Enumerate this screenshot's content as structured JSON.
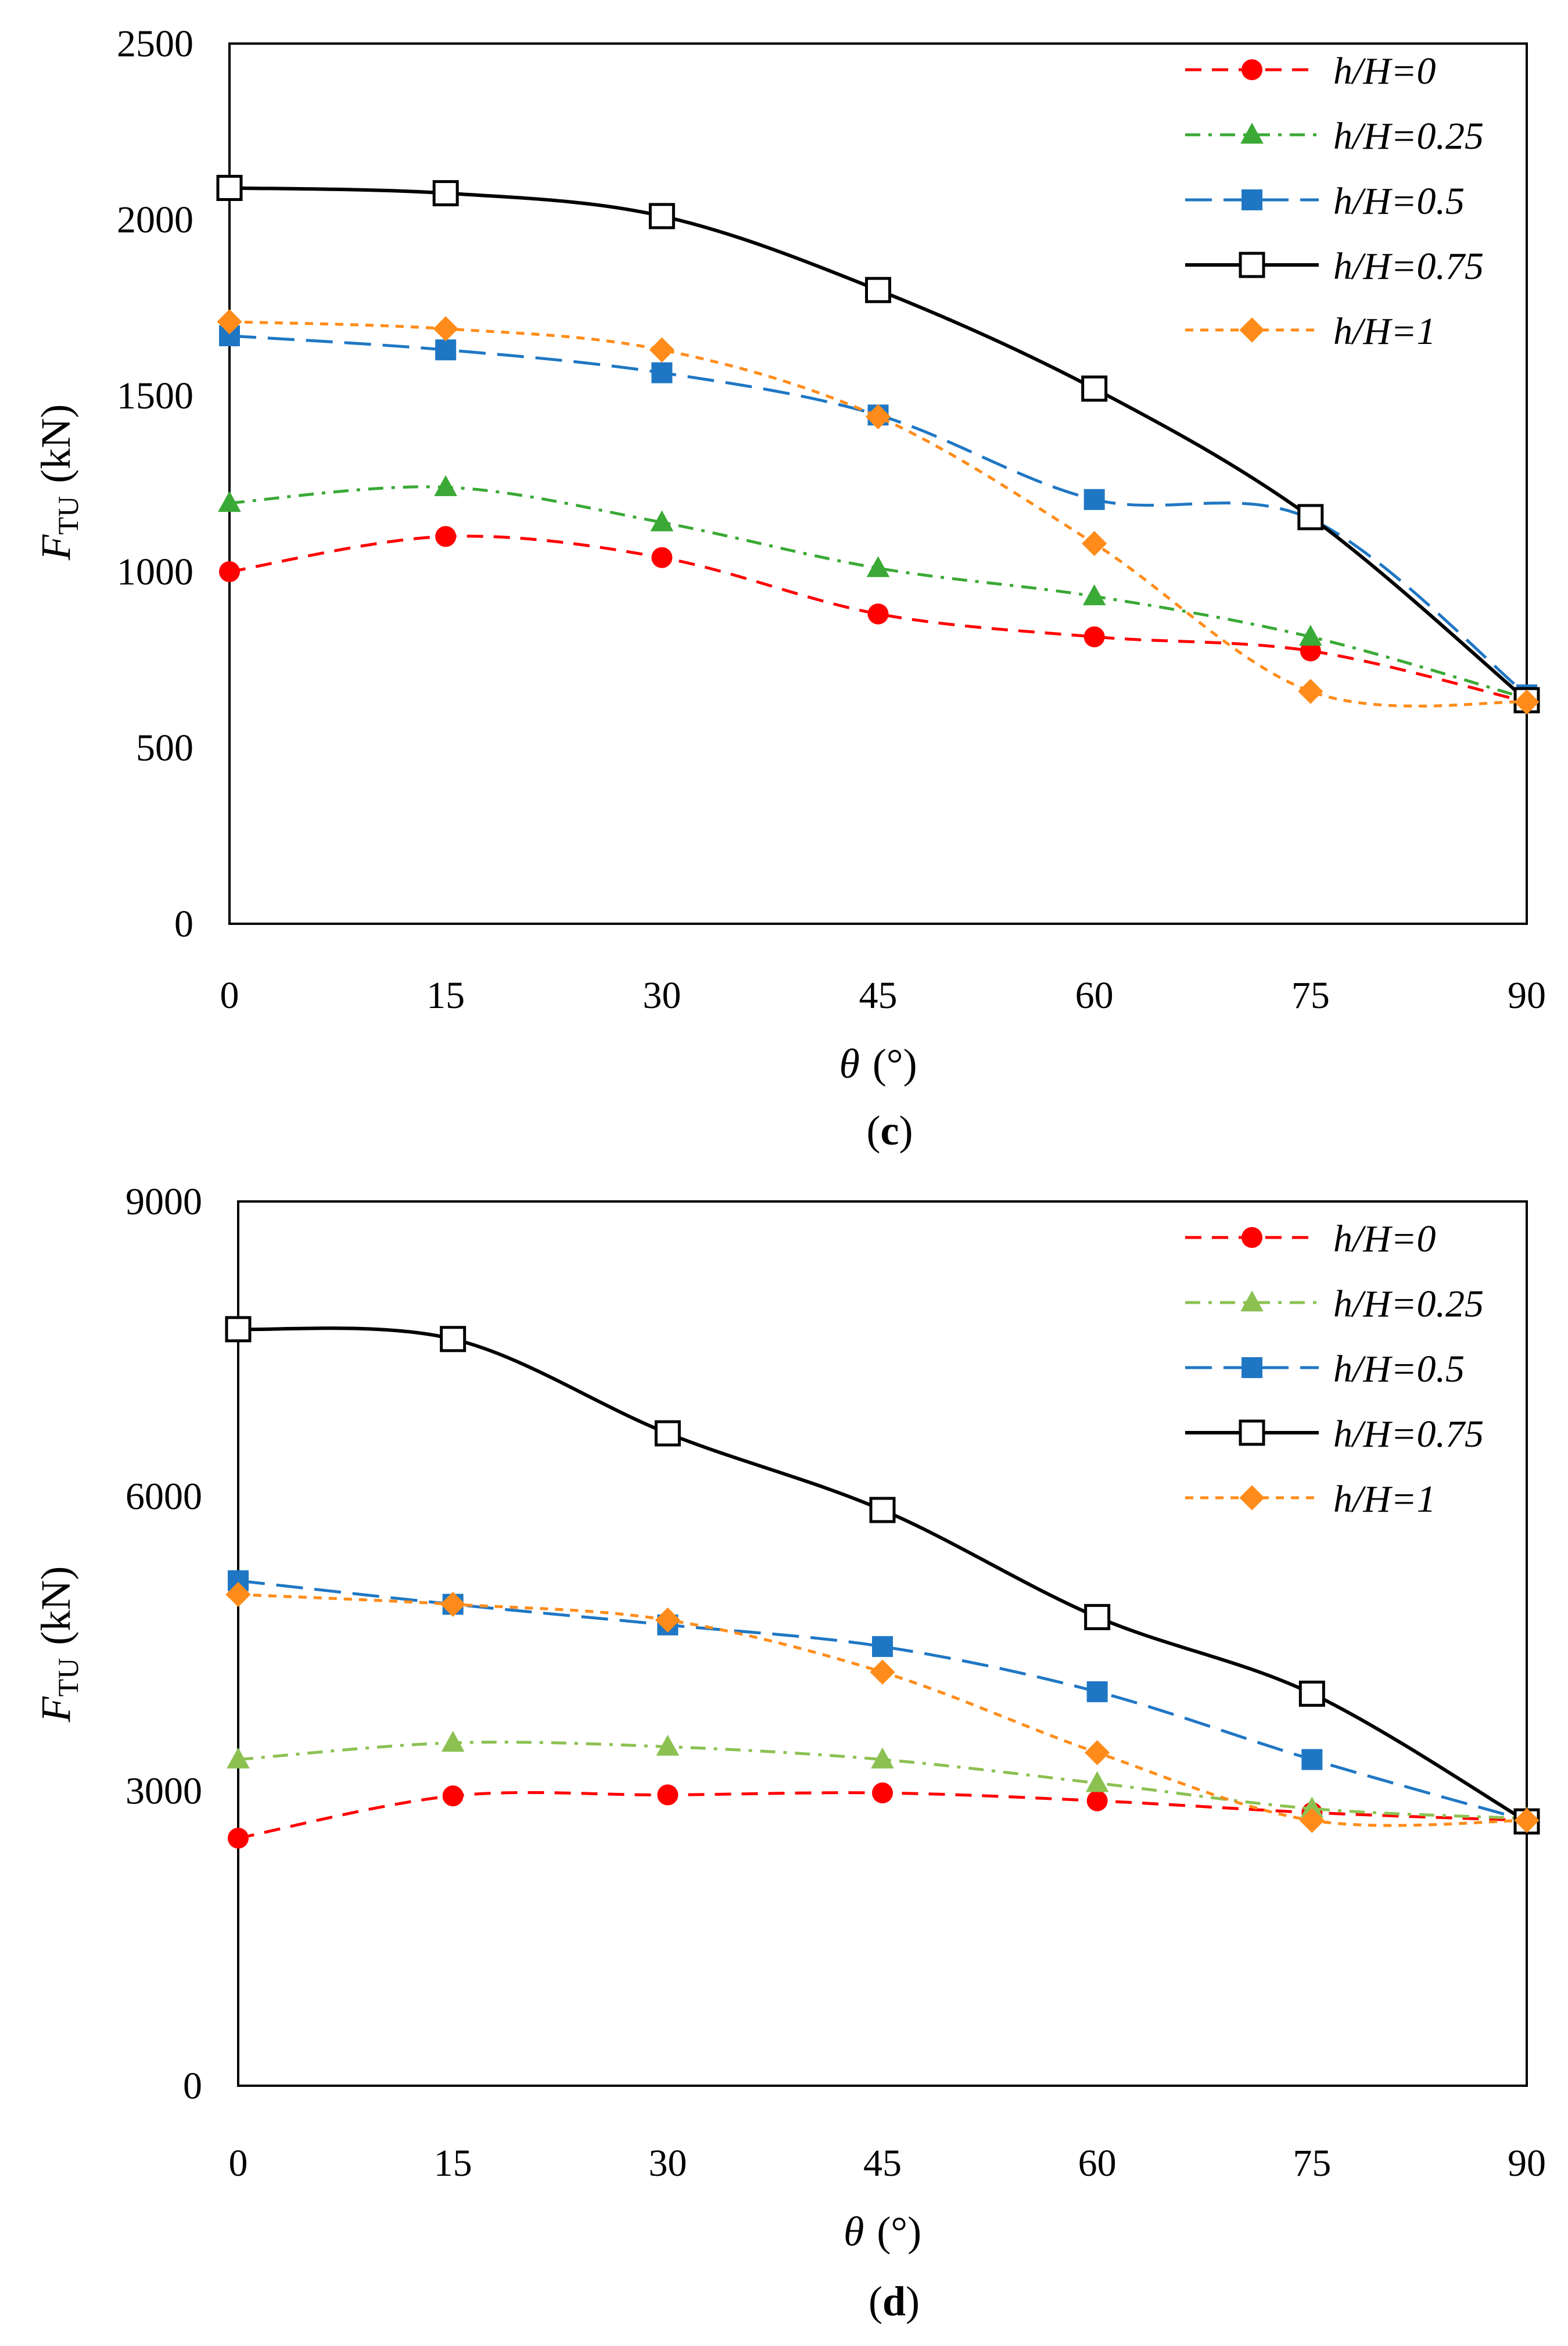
{
  "chart_data": [
    {
      "type": "line",
      "panel_label": "c",
      "xlabel": "θ",
      "xlabel_unit": "(°)",
      "ylabel": "F",
      "ylabel_sub": "TU",
      "ylabel_unit": "(kN)",
      "x_ticks": [
        "0",
        "15",
        "30",
        "45",
        "60",
        "75",
        "90"
      ],
      "y_ticks": [
        "0",
        "500",
        "1000",
        "1500",
        "2000",
        "2500"
      ],
      "xlim": [
        0,
        90
      ],
      "ylim": [
        0,
        2500
      ],
      "x": [
        0,
        15,
        30,
        45,
        60,
        75,
        90
      ],
      "legend_position": "top-right",
      "series": [
        {
          "name_italic": "h/H",
          "name_value": "=0",
          "color": "#ff0000",
          "marker": "circle",
          "dash": "dashed",
          "values": [
            1000,
            1100,
            1040,
            880,
            815,
            775,
            630
          ]
        },
        {
          "name_italic": "h/H",
          "name_value": "=0.25",
          "color": "#3aa935",
          "marker": "triangle",
          "dash": "dashdot",
          "values": [
            1195,
            1240,
            1140,
            1010,
            930,
            815,
            640
          ]
        },
        {
          "name_italic": "h/H",
          "name_value": "=0.5",
          "color": "#1f77c4",
          "marker": "square",
          "dash": "longdash",
          "values": [
            1670,
            1630,
            1565,
            1445,
            1205,
            1150,
            650
          ]
        },
        {
          "name_italic": "h/H",
          "name_value": "=0.75",
          "color": "#000000",
          "marker": "open-square",
          "dash": "solid",
          "values": [
            2090,
            2075,
            2010,
            1800,
            1520,
            1155,
            635
          ]
        },
        {
          "name_italic": "h/H",
          "name_value": "=1",
          "color": "#ff8c1a",
          "marker": "diamond",
          "dash": "dotted",
          "values": [
            1710,
            1690,
            1630,
            1440,
            1080,
            660,
            630
          ]
        }
      ]
    },
    {
      "type": "line",
      "panel_label": "d",
      "xlabel": "θ",
      "xlabel_unit": "(°)",
      "ylabel": "F",
      "ylabel_sub": "TU",
      "ylabel_unit": "(kN)",
      "x_ticks": [
        "0",
        "15",
        "30",
        "45",
        "60",
        "75",
        "90"
      ],
      "y_ticks": [
        "0",
        "3000",
        "6000",
        "9000"
      ],
      "xlim": [
        0,
        90
      ],
      "ylim": [
        0,
        9000
      ],
      "x": [
        0,
        15,
        30,
        45,
        60,
        75,
        90
      ],
      "legend_position": "top-right",
      "series": [
        {
          "name_italic": "h/H",
          "name_value": "=0",
          "color": "#ff0000",
          "marker": "circle",
          "dash": "dashed",
          "values": [
            2520,
            2950,
            2960,
            2980,
            2900,
            2780,
            2700
          ]
        },
        {
          "name_italic": "h/H",
          "name_value": "=0.25",
          "color": "#8cc152",
          "marker": "triangle",
          "dash": "dashdot",
          "values": [
            3320,
            3490,
            3450,
            3320,
            3080,
            2820,
            2720
          ]
        },
        {
          "name_italic": "h/H",
          "name_value": "=0.5",
          "color": "#1f77c4",
          "marker": "square",
          "dash": "longdash",
          "values": [
            5140,
            4900,
            4690,
            4470,
            4010,
            3320,
            2700
          ]
        },
        {
          "name_italic": "h/H",
          "name_value": "=0.75",
          "color": "#000000",
          "marker": "open-square",
          "dash": "solid",
          "values": [
            7700,
            7600,
            6640,
            5860,
            4770,
            3990,
            2690
          ]
        },
        {
          "name_italic": "h/H",
          "name_value": "=1",
          "color": "#ff8c1a",
          "marker": "diamond",
          "dash": "dotted",
          "values": [
            5000,
            4900,
            4740,
            4210,
            3390,
            2700,
            2700
          ]
        }
      ]
    }
  ]
}
